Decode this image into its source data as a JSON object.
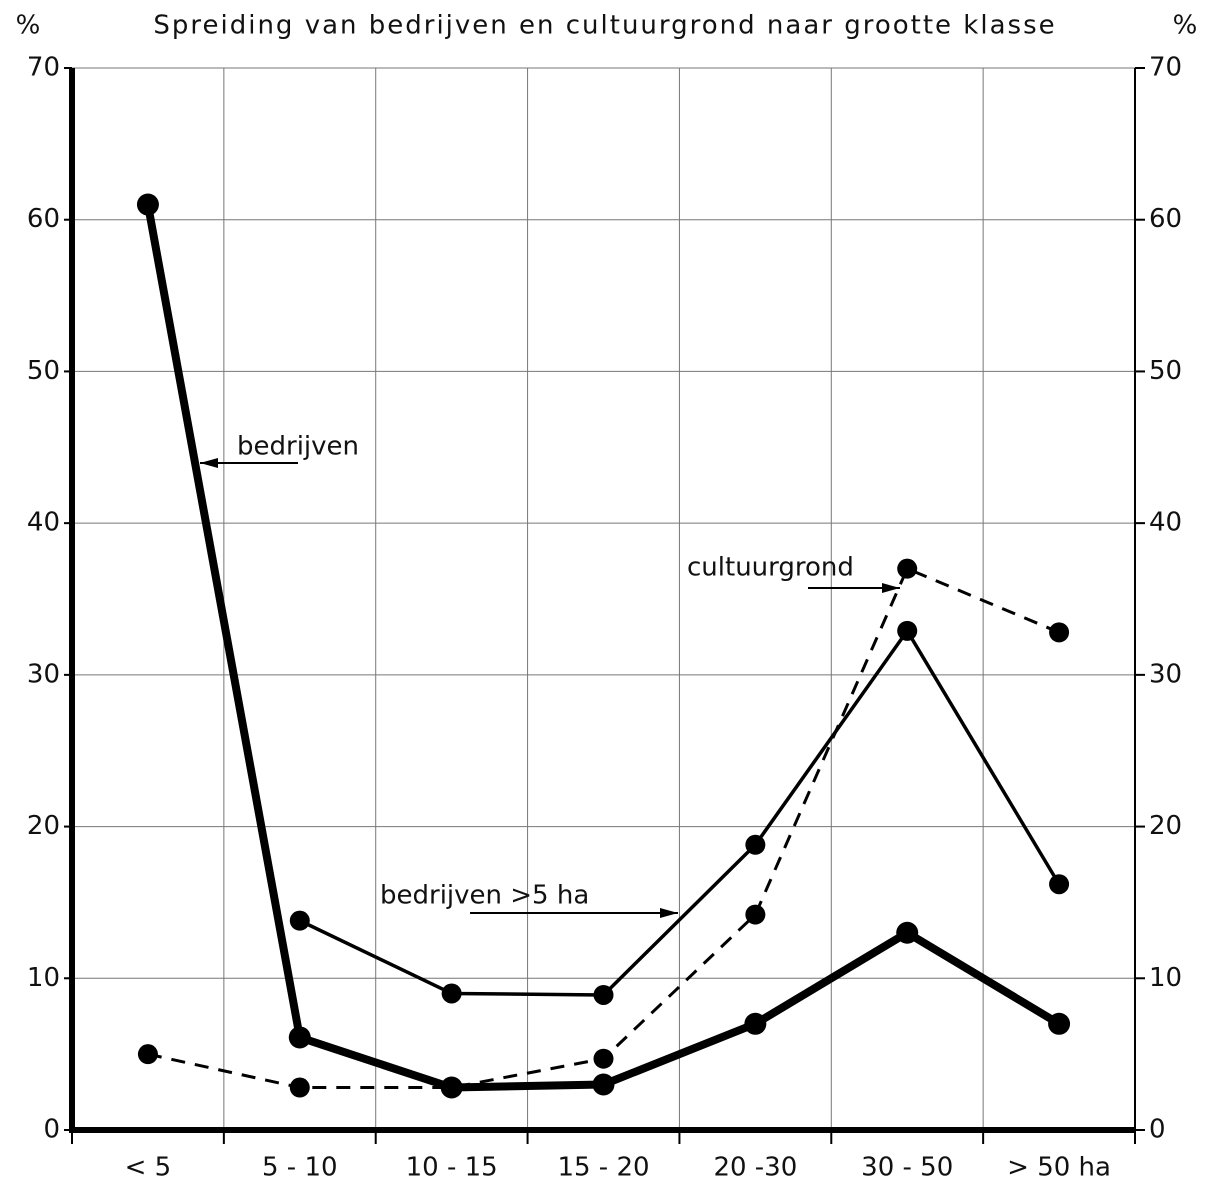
{
  "chart_data": {
    "type": "line",
    "title": "Spreiding van bedrijven en cultuurgrond naar grootte klasse",
    "ylabel": "%",
    "y2label": "%",
    "categories": [
      "< 5",
      "5 - 10",
      "10 - 15",
      "15 - 20",
      "20 -30",
      "30 - 50",
      "> 50 ha"
    ],
    "series": [
      {
        "name": "bedrijven",
        "color": "#000000",
        "style": "thick",
        "values": [
          61,
          6.1,
          2.8,
          3,
          7,
          13,
          7
        ]
      },
      {
        "name": "bedrijven >5 ha",
        "color": "#000000",
        "style": "solid",
        "values": [
          null,
          13.8,
          9,
          8.9,
          18.8,
          32.9,
          16.2
        ]
      },
      {
        "name": "cultuurgrond",
        "color": "#000000",
        "style": "dashed",
        "values": [
          5,
          2.8,
          2.8,
          4.7,
          14.2,
          37,
          32.8
        ]
      }
    ],
    "ylim": [
      0,
      70
    ],
    "yticks": [
      0,
      10,
      20,
      30,
      40,
      50,
      60,
      70
    ],
    "y2lim": [
      0,
      70
    ],
    "y2ticks": [
      0,
      10,
      20,
      30,
      40,
      50,
      60,
      70
    ],
    "grid": true
  }
}
